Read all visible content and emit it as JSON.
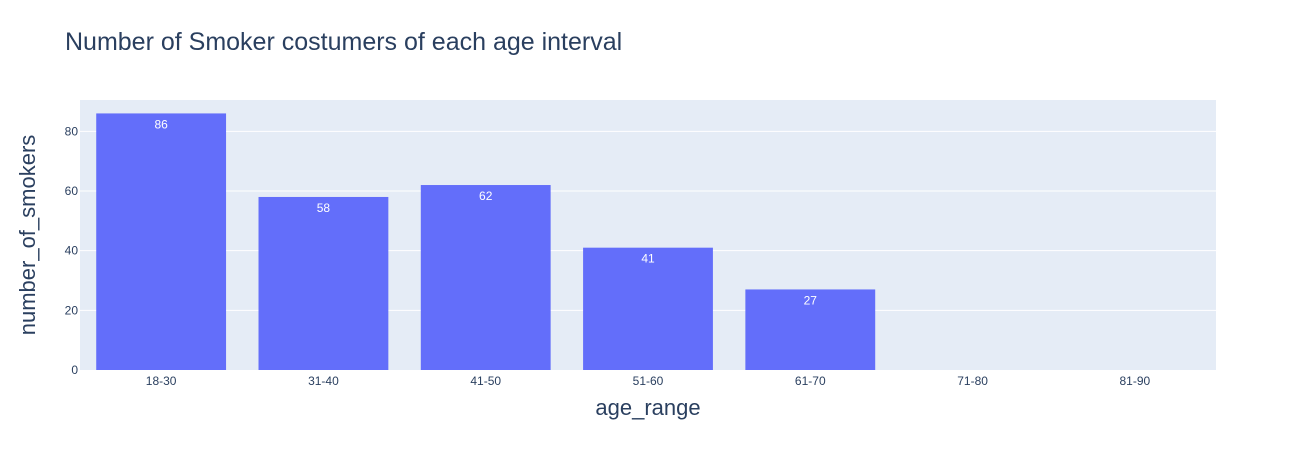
{
  "chart_data": {
    "type": "bar",
    "title": "Number of Smoker costumers of each age interval",
    "xlabel": "age_range",
    "ylabel": "number_of_smokers",
    "categories": [
      "18-30",
      "31-40",
      "41-50",
      "51-60",
      "61-70",
      "71-80",
      "81-90"
    ],
    "values": [
      86,
      58,
      62,
      41,
      27,
      0,
      0
    ],
    "data_labels": [
      "86",
      "58",
      "62",
      "41",
      "27",
      "",
      ""
    ],
    "ylim": [
      0,
      90.5
    ],
    "yticks": [
      0,
      20,
      40,
      60,
      80
    ],
    "ytick_labels": [
      "0",
      "20",
      "40",
      "60",
      "80"
    ],
    "grid": true,
    "legend": "none",
    "bar_color": "#636efa",
    "plot_bg": "#e5ecf6",
    "grid_color": "#ffffff",
    "text_color": "#2a3f5f"
  }
}
